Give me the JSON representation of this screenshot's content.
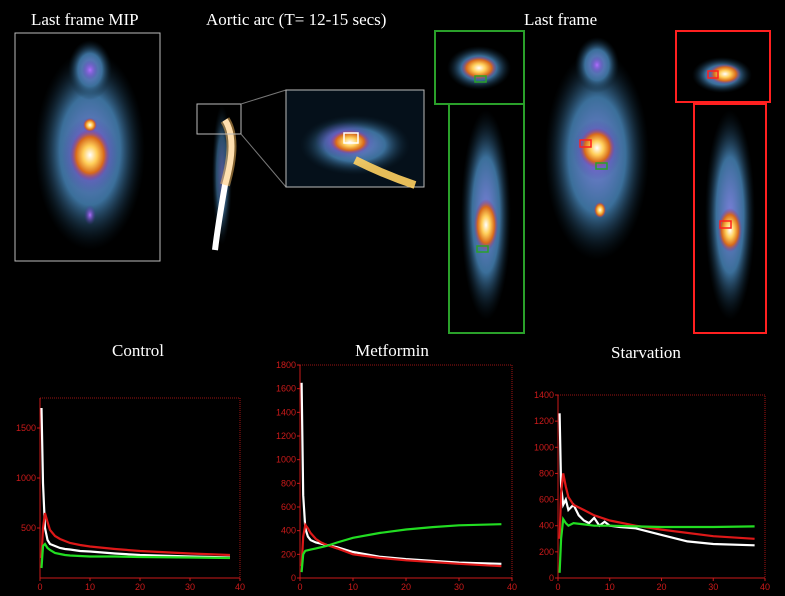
{
  "labels": {
    "mip": "Last frame MIP",
    "aortic": "Aortic arc (T= 12-15 secs)",
    "last_frame": "Last frame"
  },
  "colors": {
    "axis": "#cc1a1a",
    "control_series": "#ffffff",
    "roi_red": "#ff2020",
    "roi_green": "#2aa02a",
    "frame_white": "#cccccc",
    "green_curve": "#22dd22",
    "red_curve": "#dd1818",
    "white_curve": "#ffffff"
  },
  "chart_data": [
    {
      "type": "line",
      "title": "Control",
      "xlim": [
        0,
        40
      ],
      "ylim": [
        0,
        1800
      ],
      "xticks": [
        0,
        10,
        20,
        30,
        40
      ],
      "yticks": [
        500,
        1000,
        1500
      ],
      "series": [
        {
          "color": "white",
          "x": [
            0.3,
            0.6,
            1,
            1.5,
            2,
            3,
            4,
            5,
            6,
            8,
            10,
            15,
            20,
            30,
            38
          ],
          "y": [
            1700,
            950,
            500,
            380,
            340,
            320,
            300,
            290,
            285,
            270,
            265,
            245,
            230,
            215,
            205
          ]
        },
        {
          "color": "red",
          "x": [
            0.3,
            0.6,
            1,
            1.5,
            2,
            3,
            4,
            5,
            6,
            8,
            10,
            15,
            20,
            30,
            38
          ],
          "y": [
            200,
            500,
            650,
            560,
            480,
            420,
            390,
            370,
            350,
            330,
            315,
            290,
            270,
            245,
            230
          ]
        },
        {
          "color": "green",
          "x": [
            0.3,
            0.6,
            1,
            1.5,
            2,
            3,
            4,
            5,
            6,
            8,
            10,
            15,
            20,
            30,
            38
          ],
          "y": [
            100,
            320,
            340,
            300,
            280,
            250,
            240,
            230,
            225,
            220,
            215,
            215,
            210,
            205,
            200
          ]
        }
      ]
    },
    {
      "type": "line",
      "title": "Metformin",
      "xlim": [
        0,
        40
      ],
      "ylim": [
        0,
        1800
      ],
      "xticks": [
        0,
        10,
        20,
        30,
        40
      ],
      "yticks": [
        0,
        200,
        400,
        600,
        800,
        1000,
        1200,
        1400,
        1600,
        1800
      ],
      "series": [
        {
          "color": "white",
          "x": [
            0.3,
            0.6,
            1,
            1.5,
            2,
            3,
            4,
            5,
            7,
            10,
            15,
            20,
            30,
            38
          ],
          "y": [
            1650,
            700,
            420,
            350,
            320,
            300,
            290,
            280,
            260,
            220,
            180,
            160,
            130,
            120
          ]
        },
        {
          "color": "red",
          "x": [
            0.3,
            0.6,
            1,
            1.5,
            2,
            3,
            4,
            5,
            7,
            10,
            15,
            20,
            30,
            38
          ],
          "y": [
            100,
            350,
            450,
            420,
            380,
            330,
            300,
            280,
            250,
            200,
            170,
            150,
            120,
            100
          ]
        },
        {
          "color": "green",
          "x": [
            0.3,
            0.6,
            1,
            2,
            3,
            5,
            7,
            10,
            15,
            20,
            25,
            30,
            38
          ],
          "y": [
            50,
            200,
            230,
            240,
            250,
            270,
            300,
            340,
            380,
            410,
            430,
            445,
            455
          ]
        }
      ]
    },
    {
      "type": "line",
      "title": "Starvation",
      "xlim": [
        0,
        40
      ],
      "ylim": [
        0,
        1400
      ],
      "xticks": [
        0,
        10,
        20,
        30,
        40
      ],
      "yticks": [
        0,
        200,
        400,
        600,
        800,
        1000,
        1200,
        1400
      ],
      "series": [
        {
          "color": "white",
          "x": [
            0.3,
            0.6,
            1,
            1.5,
            2,
            3,
            4,
            5,
            6,
            7,
            8,
            9,
            10,
            12,
            15,
            20,
            25,
            30,
            38
          ],
          "y": [
            1260,
            700,
            560,
            600,
            520,
            560,
            480,
            440,
            420,
            460,
            400,
            430,
            400,
            390,
            380,
            330,
            280,
            260,
            250
          ]
        },
        {
          "color": "red",
          "x": [
            0.3,
            0.6,
            1,
            1.5,
            2,
            3,
            5,
            7,
            10,
            15,
            20,
            30,
            38
          ],
          "y": [
            300,
            650,
            800,
            700,
            620,
            560,
            520,
            480,
            440,
            400,
            370,
            320,
            300
          ]
        },
        {
          "color": "green",
          "x": [
            0.3,
            0.6,
            1,
            1.5,
            2,
            3,
            5,
            7,
            10,
            15,
            20,
            30,
            38
          ],
          "y": [
            40,
            300,
            450,
            420,
            400,
            420,
            410,
            400,
            400,
            395,
            390,
            390,
            395
          ]
        }
      ]
    }
  ]
}
